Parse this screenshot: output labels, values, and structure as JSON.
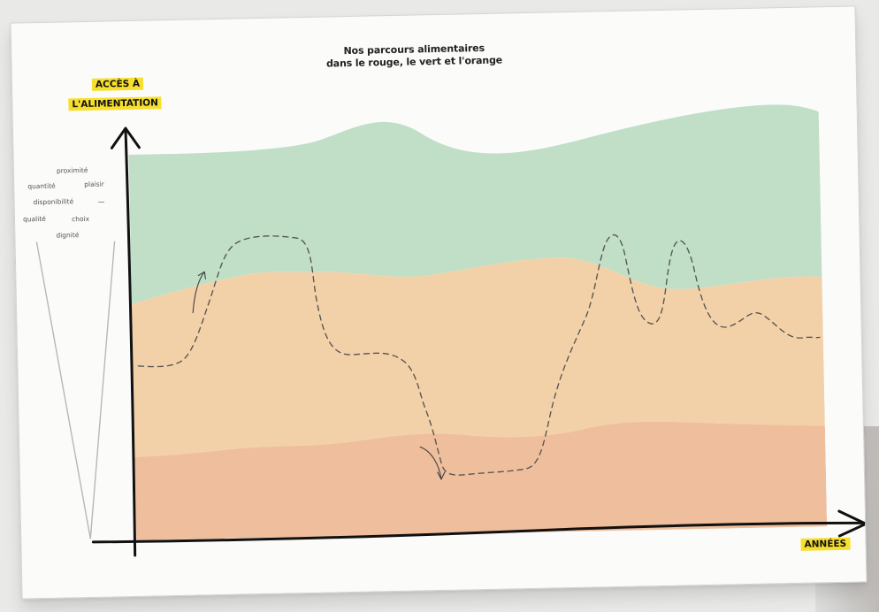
{
  "diagram": {
    "title_line_1": "Nos parcours alimentaires",
    "title_line_2": "dans le rouge, le vert et l'orange",
    "y_axis_label_1": "ACCÈS À",
    "y_axis_label_2": "L'ALIMENTATION",
    "x_axis_label": "ANNÉES",
    "criteria": [
      "proximité",
      "quantité",
      "plaisir",
      "disponibilité",
      "qualité",
      "choix",
      "dignité"
    ],
    "criteria_continuation": "—",
    "colors": {
      "green_zone": "#c0dfc6",
      "orange_zone": "#f3d1a8",
      "red_zone": "#efbe9c",
      "axis": "#111111",
      "highlight": "#f7df2d",
      "path": "#555555"
    }
  }
}
